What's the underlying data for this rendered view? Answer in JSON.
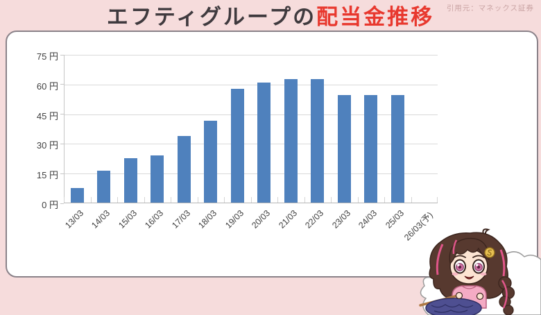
{
  "header": {
    "title_main": "エフティグループの",
    "title_accent": "配当金推移",
    "source_note": "引用元：マネックス証券"
  },
  "colors": {
    "background": "#f6dcdc",
    "title_main": "#3f3a3e",
    "title_accent": "#e8382e",
    "panel_border": "#8a8289",
    "bar": "#4f81bd",
    "gridline": "#d9d9d9",
    "axis_label": "#404040",
    "source_note": "#c9a3a3"
  },
  "chart_data": {
    "type": "bar",
    "title": "エフティグループの配当金推移",
    "unit": "円",
    "categories": [
      "13/03",
      "14/03",
      "15/03",
      "16/03",
      "17/03",
      "18/03",
      "19/03",
      "20/03",
      "21/03",
      "22/03",
      "23/03",
      "24/03",
      "25/03",
      "26/03(予)"
    ],
    "values": [
      7.5,
      16.25,
      22.5,
      23.75,
      33.75,
      41.25,
      57.5,
      60.5,
      62.5,
      62.5,
      54.4,
      54.4,
      54.4,
      null
    ],
    "xlabel": "",
    "ylabel": "",
    "ylim": [
      0,
      75
    ],
    "ytick_step": 15,
    "ytick_labels": [
      "0 円",
      "15 円",
      "30 円",
      "45 円",
      "60 円",
      "75 円"
    ],
    "grid": true,
    "legend": "none",
    "note": "26/03(予) slot has no bar plotted"
  },
  "mascot": {
    "name": "knitting-girl-mascot"
  }
}
